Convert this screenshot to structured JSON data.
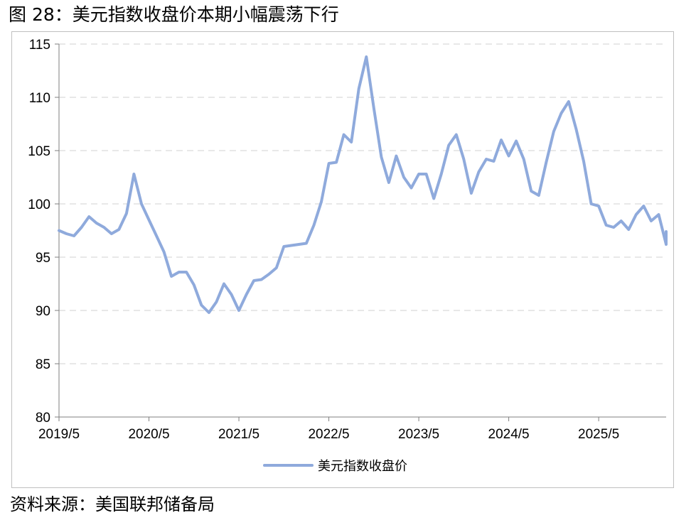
{
  "figure_title": "图 28：美元指数收盘价本期小幅震荡下行",
  "source_note": "资料来源：美国联邦储备局",
  "colors": {
    "series": "#8faadc",
    "grid": "#d9d9d9",
    "axis": "#7f7f7f",
    "frame": "#bfbfbf"
  },
  "chart_data": {
    "type": "line",
    "title": "图 28：美元指数收盘价本期小幅震荡下行",
    "xlabel": "",
    "ylabel": "",
    "ylim": [
      80,
      115
    ],
    "yticks": [
      80,
      85,
      90,
      95,
      100,
      105,
      110,
      115
    ],
    "xlim": [
      "2019-05",
      "2026-02"
    ],
    "xticks": [
      {
        "label": "2019/5",
        "x": "2019-05"
      },
      {
        "label": "2020/5",
        "x": "2020-05"
      },
      {
        "label": "2021/5",
        "x": "2021-05"
      },
      {
        "label": "2022/5",
        "x": "2022-05"
      },
      {
        "label": "2023/5",
        "x": "2023-05"
      },
      {
        "label": "2024/5",
        "x": "2024-05"
      },
      {
        "label": "2025/5",
        "x": "2025-05"
      }
    ],
    "grid": "horizontal dashed",
    "legend_position": "bottom",
    "series": [
      {
        "name": "美元指数收盘价",
        "points": [
          [
            "2019-05",
            97.5
          ],
          [
            "2019-06",
            97.2
          ],
          [
            "2019-07",
            97.0
          ],
          [
            "2019-08",
            97.8
          ],
          [
            "2019-09",
            98.8
          ],
          [
            "2019-10",
            98.2
          ],
          [
            "2019-11",
            97.8
          ],
          [
            "2019-12",
            97.2
          ],
          [
            "2020-01",
            97.6
          ],
          [
            "2020-02",
            99.1
          ],
          [
            "2020-03",
            102.8
          ],
          [
            "2020-04",
            100.0
          ],
          [
            "2020-05",
            98.5
          ],
          [
            "2020-06",
            97.0
          ],
          [
            "2020-07",
            95.5
          ],
          [
            "2020-08",
            93.2
          ],
          [
            "2020-09",
            93.6
          ],
          [
            "2020-10",
            93.6
          ],
          [
            "2020-11",
            92.4
          ],
          [
            "2020-12",
            90.5
          ],
          [
            "2021-01",
            89.8
          ],
          [
            "2021-02",
            90.8
          ],
          [
            "2021-03",
            92.5
          ],
          [
            "2021-04",
            91.5
          ],
          [
            "2021-05",
            90.0
          ],
          [
            "2021-06",
            91.5
          ],
          [
            "2021-07",
            92.8
          ],
          [
            "2021-08",
            92.9
          ],
          [
            "2021-09",
            93.4
          ],
          [
            "2021-10",
            94.0
          ],
          [
            "2021-11",
            96.0
          ],
          [
            "2021-12",
            96.1
          ],
          [
            "2022-01",
            96.2
          ],
          [
            "2022-02",
            96.3
          ],
          [
            "2022-03",
            98.0
          ],
          [
            "2022-04",
            100.2
          ],
          [
            "2022-05",
            103.8
          ],
          [
            "2022-06",
            103.9
          ],
          [
            "2022-07",
            106.5
          ],
          [
            "2022-08",
            105.8
          ],
          [
            "2022-09",
            110.8
          ],
          [
            "2022-10",
            113.8
          ],
          [
            "2022-11",
            109.0
          ],
          [
            "2022-12",
            104.4
          ],
          [
            "2023-01",
            102.0
          ],
          [
            "2023-02",
            104.5
          ],
          [
            "2023-03",
            102.5
          ],
          [
            "2023-04",
            101.5
          ],
          [
            "2023-05",
            102.8
          ],
          [
            "2023-06",
            102.8
          ],
          [
            "2023-07",
            100.5
          ],
          [
            "2023-08",
            102.8
          ],
          [
            "2023-09",
            105.5
          ],
          [
            "2023-10",
            106.5
          ],
          [
            "2023-11",
            104.2
          ],
          [
            "2023-12",
            101.0
          ],
          [
            "2024-01",
            103.0
          ],
          [
            "2024-02",
            104.2
          ],
          [
            "2024-03",
            104.0
          ],
          [
            "2024-04",
            106.0
          ],
          [
            "2024-05",
            104.5
          ],
          [
            "2024-06",
            105.9
          ],
          [
            "2024-07",
            104.2
          ],
          [
            "2024-08",
            101.2
          ],
          [
            "2024-09",
            100.8
          ],
          [
            "2024-10",
            103.9
          ],
          [
            "2024-11",
            106.8
          ],
          [
            "2024-12",
            108.5
          ],
          [
            "2025-01",
            109.6
          ],
          [
            "2025-02",
            107.0
          ],
          [
            "2025-03",
            104.0
          ],
          [
            "2025-04",
            100.0
          ],
          [
            "2025-05",
            99.8
          ],
          [
            "2025-06",
            98.0
          ],
          [
            "2025-07",
            97.8
          ],
          [
            "2025-08",
            98.4
          ],
          [
            "2025-09",
            97.6
          ],
          [
            "2025-10",
            99.0
          ],
          [
            "2025-11",
            99.8
          ],
          [
            "2025-12",
            98.4
          ],
          [
            "2026-01",
            99.0
          ],
          [
            "2026-02",
            96.2
          ],
          [
            "2026-02",
            97.4
          ]
        ]
      }
    ]
  }
}
